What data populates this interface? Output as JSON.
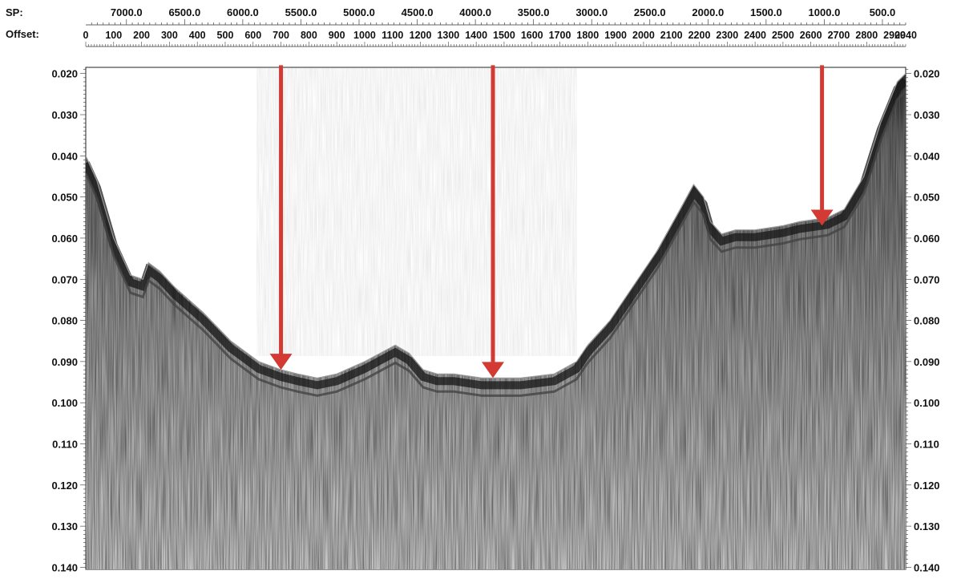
{
  "header": {
    "sp_label": "SP:",
    "offset_label": "Offset:"
  },
  "chart_data": {
    "type": "seismic-profile",
    "x_axis_top": {
      "name": "SP:",
      "ticks": [
        "7000.0",
        "6500.0",
        "6000.0",
        "5500.0",
        "5000.0",
        "4500.0",
        "4000.0",
        "3500.0",
        "3000.0",
        "2500.0",
        "2000.0",
        "1500.0",
        "1000.0",
        "500.0"
      ],
      "values": [
        7000,
        6500,
        6000,
        5500,
        5000,
        4500,
        4000,
        3500,
        3000,
        2500,
        2000,
        1500,
        1000,
        500
      ],
      "range": [
        7350,
        300
      ]
    },
    "x_axis_offset": {
      "name": "Offset:",
      "tick_labels": [
        "0",
        "100",
        "200",
        "300",
        "400",
        "500",
        "600",
        "700",
        "800",
        "900",
        "1000",
        "1100",
        "1200",
        "1300",
        "1400",
        "1500",
        "1600",
        "1700",
        "1800",
        "1900",
        "2000",
        "2100",
        "2200",
        "2300",
        "2400",
        "2500",
        "2600",
        "2700",
        "2800",
        "2900",
        "2940"
      ],
      "range": [
        0,
        2940
      ]
    },
    "y_axis": {
      "tick_labels": [
        "0.020",
        "0.030",
        "0.040",
        "0.050",
        "0.060",
        "0.070",
        "0.080",
        "0.090",
        "0.100",
        "0.110",
        "0.120",
        "0.130",
        "0.140"
      ],
      "range": [
        0.0185,
        0.1405
      ],
      "inverted": true,
      "both_sides": true
    },
    "seabed": {
      "offsets": [
        0,
        40,
        100,
        160,
        205,
        225,
        265,
        320,
        420,
        520,
        620,
        700,
        760,
        830,
        900,
        1000,
        1110,
        1160,
        1210,
        1260,
        1320,
        1420,
        1560,
        1680,
        1760,
        1800,
        1880,
        1960,
        2050,
        2140,
        2180,
        2215,
        2240,
        2280,
        2330,
        2400,
        2500,
        2560,
        2610,
        2660,
        2720,
        2790,
        2850,
        2910,
        2940
      ],
      "times": [
        0.04,
        0.046,
        0.06,
        0.069,
        0.07,
        0.066,
        0.068,
        0.072,
        0.078,
        0.085,
        0.09,
        0.092,
        0.093,
        0.094,
        0.093,
        0.09,
        0.086,
        0.088,
        0.092,
        0.093,
        0.093,
        0.094,
        0.094,
        0.093,
        0.09,
        0.086,
        0.08,
        0.072,
        0.063,
        0.052,
        0.047,
        0.05,
        0.056,
        0.059,
        0.058,
        0.058,
        0.057,
        0.056,
        0.0555,
        0.055,
        0.053,
        0.045,
        0.032,
        0.022,
        0.02
      ]
    },
    "markers": [
      {
        "type": "arrow",
        "offset": 700,
        "from": 0.018,
        "to": 0.092,
        "color": "#d23a33"
      },
      {
        "type": "arrow",
        "offset": 1460,
        "from": 0.018,
        "to": 0.094,
        "color": "#d23a33"
      },
      {
        "type": "arrow",
        "offset": 2640,
        "from": 0.018,
        "to": 0.057,
        "color": "#d23a33"
      }
    ],
    "grid": false
  }
}
